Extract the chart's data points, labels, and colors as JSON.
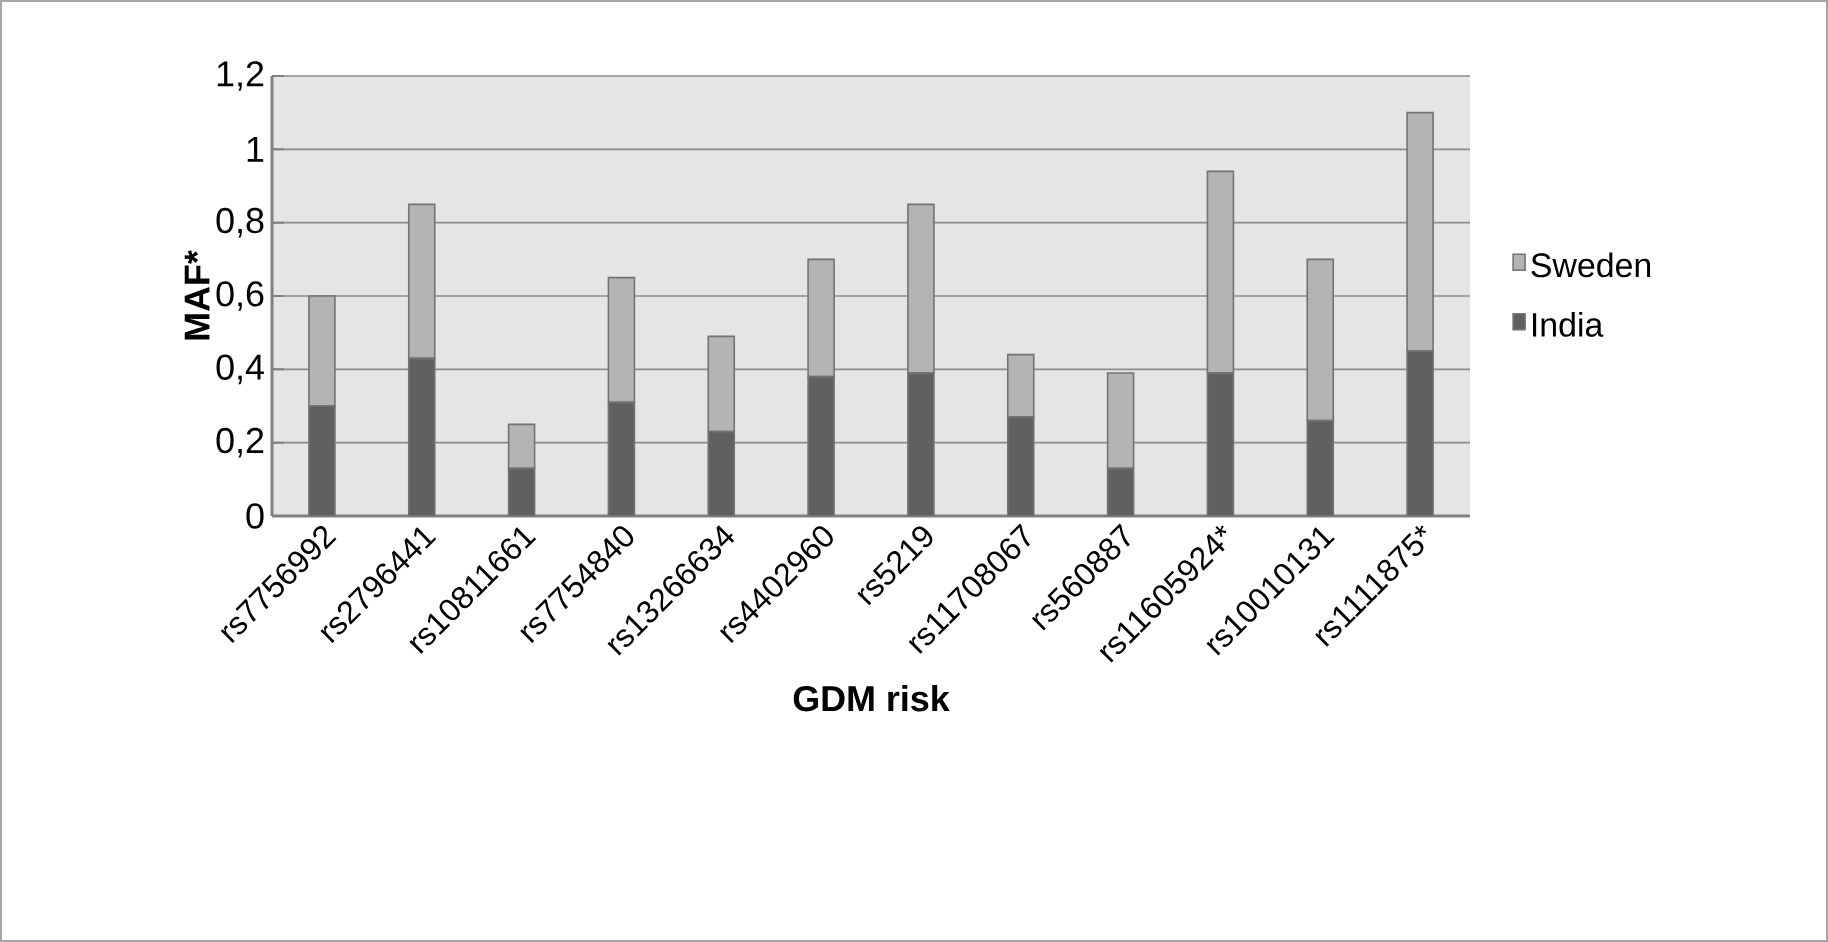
{
  "chart_data": {
    "type": "bar",
    "stacked": true,
    "xlabel": "GDM risk",
    "ylabel": "MAF*",
    "categories": [
      "rs7756992",
      "rs2796441",
      "rs10811661",
      "rs7754840",
      "rs13266634",
      "rs4402960",
      "rs5219",
      "rs11708067",
      "rs560887",
      "rs11605924*",
      "rs10010131",
      "rs1111875*"
    ],
    "series": [
      {
        "name": "India",
        "color": "#606060",
        "values": [
          0.3,
          0.43,
          0.13,
          0.31,
          0.23,
          0.38,
          0.39,
          0.27,
          0.13,
          0.39,
          0.26,
          0.45
        ]
      },
      {
        "name": "Sweden",
        "color": "#b4b4b4",
        "values": [
          0.3,
          0.42,
          0.12,
          0.34,
          0.26,
          0.32,
          0.46,
          0.17,
          0.26,
          0.55,
          0.44,
          0.65
        ]
      }
    ],
    "ylim": [
      0,
      1.2
    ],
    "yticks": [
      {
        "value": 0,
        "label": "0"
      },
      {
        "value": 0.2,
        "label": "0,2"
      },
      {
        "value": 0.4,
        "label": "0,4"
      },
      {
        "value": 0.6,
        "label": "0,6"
      },
      {
        "value": 0.8,
        "label": "0,8"
      },
      {
        "value": 1,
        "label": "1"
      },
      {
        "value": 1.2,
        "label": "1,2"
      }
    ],
    "grid": "y",
    "legend": "right"
  }
}
